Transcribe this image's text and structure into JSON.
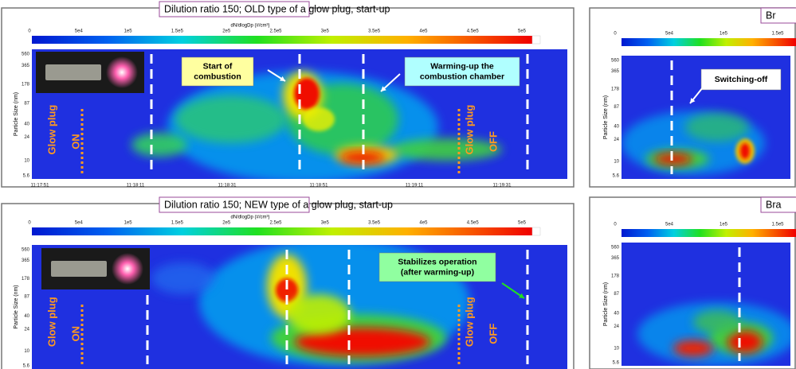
{
  "panels": [
    {
      "title": "Dilution ratio 150; OLD type of a glow plug, start-up",
      "colorbar_label": "dN/dlogDp (#/cm³)",
      "colorbar_ticks": [
        "0",
        "5e4",
        "1e5",
        "1.5e5",
        "2e5",
        "2.5e5",
        "3e5",
        "3.5e5",
        "4e5",
        "4.5e5",
        "5e5"
      ],
      "y_label": "Particle Size (nm)",
      "y_ticks": [
        "560",
        "365",
        "178",
        "87",
        "40",
        "24",
        "10",
        "5.6"
      ],
      "x_ticks": [
        "11:17:51",
        "11:18:11",
        "11:18:31",
        "11:18:51",
        "11:19:11",
        "11:19:31"
      ],
      "annotations": [
        {
          "lines": [
            "Start of",
            "combustion"
          ]
        },
        {
          "lines": [
            "Warming-up the",
            "combustion chamber"
          ]
        }
      ],
      "glow_on": [
        "Glow plug",
        "ON"
      ],
      "glow_off": [
        "Glow plug",
        "OFF"
      ]
    },
    {
      "title": "Dilution ratio 150; NEW type of a glow plug, start-up",
      "colorbar_label": "dN/dlogDp (#/cm³)",
      "colorbar_ticks": [
        "0",
        "5e4",
        "1e5",
        "1.5e5",
        "2e5",
        "2.5e5",
        "3e5",
        "3.5e5",
        "4e5",
        "4.5e5",
        "5e5"
      ],
      "y_label": "Particle Size (nm)",
      "y_ticks": [
        "560",
        "365",
        "178",
        "87",
        "40",
        "24",
        "10",
        "5.6"
      ],
      "annotations": [
        {
          "lines": [
            "Stabilizes operation",
            "(after warming-up)"
          ]
        }
      ],
      "glow_on": [
        "Glow plug",
        "ON"
      ],
      "glow_off": [
        "Glow plug",
        "OFF"
      ]
    },
    {
      "title": "Br",
      "colorbar_ticks": [
        "0",
        "5e4",
        "1e5",
        "1.5e5"
      ],
      "y_label": "Particle Size (nm)",
      "y_ticks": [
        "560",
        "365",
        "178",
        "87",
        "40",
        "24",
        "10",
        "5.6"
      ],
      "annotations": [
        {
          "lines": [
            "Switching-off"
          ]
        }
      ]
    },
    {
      "title": "Bra",
      "colorbar_ticks": [
        "0",
        "5e4",
        "1e5",
        "1.5e5"
      ],
      "y_label": "Particle Size (nm)",
      "y_ticks": [
        "560",
        "365",
        "178",
        "87",
        "40",
        "24",
        "10",
        "5.6"
      ]
    }
  ]
}
